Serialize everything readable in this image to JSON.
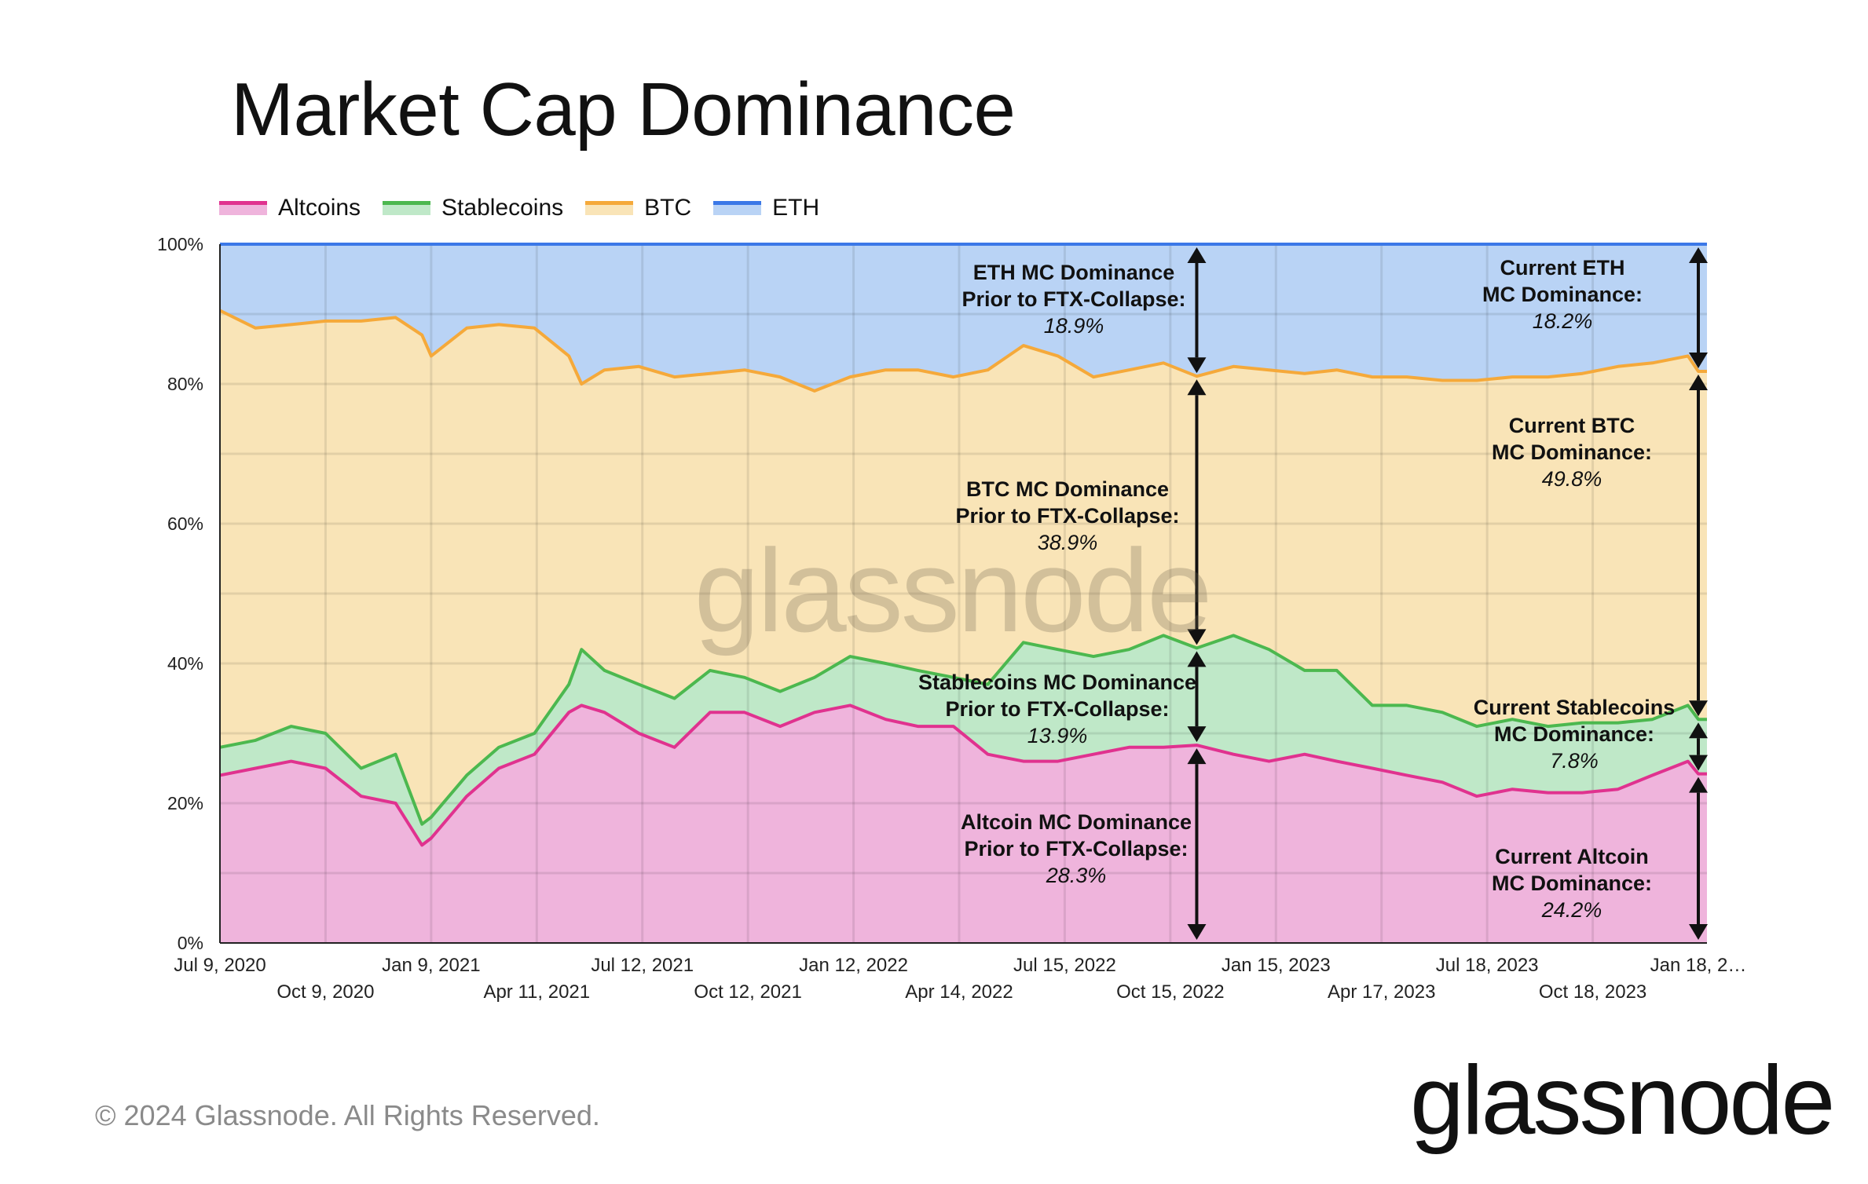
{
  "chart_data": {
    "type": "area",
    "stacked": true,
    "title": "Market Cap Dominance",
    "ylim": [
      0,
      100
    ],
    "y_ticks": [
      "0%",
      "20%",
      "40%",
      "60%",
      "80%",
      "100%"
    ],
    "y_tick_values": [
      0,
      20,
      40,
      60,
      80,
      100
    ],
    "grid": true,
    "legend_position": "top-left",
    "x_ticks": [
      {
        "date": "2020-07-09",
        "label": "Jul 9, 2020",
        "row": 1
      },
      {
        "date": "2020-10-09",
        "label": "Oct 9, 2020",
        "row": 2
      },
      {
        "date": "2021-01-09",
        "label": "Jan 9, 2021",
        "row": 1
      },
      {
        "date": "2021-04-11",
        "label": "Apr 11, 2021",
        "row": 2
      },
      {
        "date": "2021-07-12",
        "label": "Jul 12, 2021",
        "row": 1
      },
      {
        "date": "2021-10-12",
        "label": "Oct 12, 2021",
        "row": 2
      },
      {
        "date": "2022-01-12",
        "label": "Jan 12, 2022",
        "row": 1
      },
      {
        "date": "2022-04-14",
        "label": "Apr 14, 2022",
        "row": 2
      },
      {
        "date": "2022-07-15",
        "label": "Jul 15, 2022",
        "row": 1
      },
      {
        "date": "2022-10-15",
        "label": "Oct 15, 2022",
        "row": 2
      },
      {
        "date": "2023-01-15",
        "label": "Jan 15, 2023",
        "row": 1
      },
      {
        "date": "2023-04-17",
        "label": "Apr 17, 2023",
        "row": 2
      },
      {
        "date": "2023-07-18",
        "label": "Jul 18, 2023",
        "row": 1
      },
      {
        "date": "2023-10-18",
        "label": "Oct 18, 2023",
        "row": 2
      },
      {
        "date": "2024-01-18",
        "label": "Jan 18, 2…",
        "row": 1
      }
    ],
    "x": [
      "2020-07-09",
      "2020-08-09",
      "2020-09-09",
      "2020-10-09",
      "2020-11-09",
      "2020-12-09",
      "2021-01-01",
      "2021-01-09",
      "2021-02-09",
      "2021-03-09",
      "2021-04-09",
      "2021-05-09",
      "2021-05-20",
      "2021-06-09",
      "2021-07-09",
      "2021-08-09",
      "2021-09-09",
      "2021-10-09",
      "2021-11-09",
      "2021-12-09",
      "2022-01-09",
      "2022-02-09",
      "2022-03-09",
      "2022-04-09",
      "2022-05-09",
      "2022-06-09",
      "2022-07-09",
      "2022-08-09",
      "2022-09-09",
      "2022-10-09",
      "2022-11-07",
      "2022-12-09",
      "2023-01-09",
      "2023-02-09",
      "2023-03-09",
      "2023-04-09",
      "2023-05-09",
      "2023-06-09",
      "2023-07-09",
      "2023-08-09",
      "2023-09-09",
      "2023-10-09",
      "2023-11-09",
      "2023-12-09",
      "2024-01-09",
      "2024-01-18"
    ],
    "series": [
      {
        "name": "Altcoins",
        "line_color": "#e0328f",
        "fill_color": "#efb4dc",
        "values": [
          24,
          25,
          26,
          25,
          21,
          20,
          14,
          15,
          21,
          25,
          27,
          33,
          34,
          33,
          30,
          28,
          33,
          33,
          31,
          33,
          34,
          32,
          31,
          31,
          27,
          26,
          26,
          27,
          28,
          28,
          28.3,
          27,
          26,
          27,
          26,
          25,
          24,
          23,
          21,
          22,
          21.5,
          21.5,
          22,
          24,
          26,
          24.2
        ]
      },
      {
        "name": "Stablecoins",
        "line_color": "#4cb84f",
        "fill_color": "#bfe8c8",
        "values": [
          4,
          4,
          5,
          5,
          4,
          7,
          3,
          3,
          3,
          3,
          3,
          4,
          8,
          6,
          7,
          7,
          6,
          5,
          5,
          5,
          7,
          8,
          8,
          7,
          10,
          17,
          16,
          14,
          14,
          16,
          13.9,
          17,
          16,
          12,
          13,
          9,
          10,
          10,
          10,
          10,
          9.5,
          10,
          9.5,
          8,
          8,
          7.8
        ]
      },
      {
        "name": "BTC",
        "line_color": "#f5a93a",
        "fill_color": "#f9e4b7",
        "values": [
          62.5,
          59,
          57.5,
          59,
          64,
          62.5,
          70,
          66,
          64,
          60.5,
          58,
          47,
          38,
          43,
          45.5,
          46,
          42.5,
          44,
          45,
          41,
          40,
          42,
          43,
          43,
          45,
          42.5,
          42,
          40,
          40,
          39,
          38.9,
          38.5,
          40,
          42.5,
          43,
          47,
          47,
          47.5,
          49.5,
          49,
          50,
          50,
          51,
          51,
          50,
          49.8
        ]
      },
      {
        "name": "ETH",
        "line_color": "#3b78e7",
        "fill_color": "#b9d3f5",
        "values": [
          9.5,
          12,
          11.5,
          11,
          11,
          10.5,
          13,
          16,
          12,
          11.5,
          12,
          16,
          20,
          18,
          17.5,
          19,
          18.5,
          18,
          19,
          21,
          19,
          18,
          18,
          19,
          18,
          14.5,
          16,
          19,
          18,
          17,
          18.9,
          17.5,
          18,
          18.5,
          18,
          19,
          19,
          19.5,
          19.5,
          19,
          19,
          18.5,
          17.5,
          17,
          16,
          18.2
        ]
      }
    ],
    "annotations": {
      "prior": {
        "date": "2022-11-07",
        "eth": {
          "line1": "ETH MC Dominance",
          "line2": "Prior to FTX-Collapse:",
          "value": "18.9%"
        },
        "btc": {
          "line1": "BTC MC Dominance",
          "line2": "Prior to FTX-Collapse:",
          "value": "38.9%"
        },
        "stable": {
          "line1": "Stablecoins MC Dominance",
          "line2": "Prior to FTX-Collapse:",
          "value": "13.9%"
        },
        "alt": {
          "line1": "Altcoin MC Dominance",
          "line2": "Prior to FTX-Collapse:",
          "value": "28.3%"
        }
      },
      "current": {
        "date": "2024-01-18",
        "eth": {
          "line1": "Current ETH",
          "line2": "MC Dominance:",
          "value": "18.2%"
        },
        "btc": {
          "line1": "Current BTC",
          "line2": "MC Dominance:",
          "value": "49.8%"
        },
        "stable": {
          "line1": "Current Stablecoins",
          "line2": "MC Dominance:",
          "value": "7.8%"
        },
        "alt": {
          "line1": "Current Altcoin",
          "line2": "MC Dominance:",
          "value": "24.2%"
        }
      }
    }
  },
  "legend": [
    {
      "label": "Altcoins"
    },
    {
      "label": "Stablecoins"
    },
    {
      "label": "BTC"
    },
    {
      "label": "ETH"
    }
  ],
  "watermark": "glassnode",
  "footer": {
    "copyright": "© 2024 Glassnode. All Rights Reserved.",
    "logo": "glassnode"
  }
}
